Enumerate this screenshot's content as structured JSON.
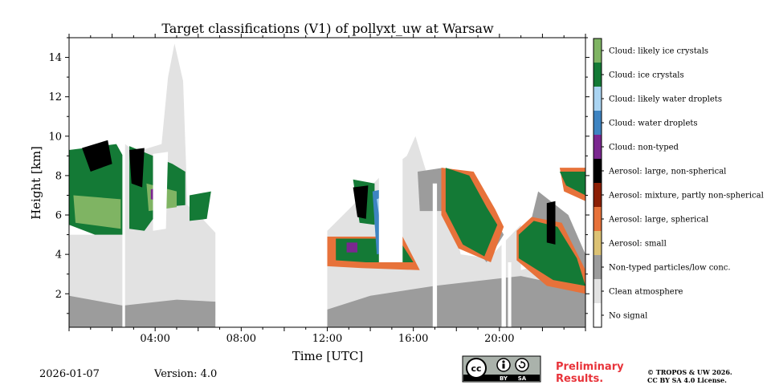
{
  "chart_data": {
    "type": "heatmap",
    "title": "Target classifications (V1) of pollyxt_uw at Warsaw",
    "xlabel": "Time [UTC]",
    "ylabel": "Height [km]",
    "xlim_hours": [
      0,
      24
    ],
    "ylim_km": [
      0.3,
      15
    ],
    "x_ticks": [
      {
        "hour": 4,
        "label": "04:00"
      },
      {
        "hour": 8,
        "label": "08:00"
      },
      {
        "hour": 12,
        "label": "12:00"
      },
      {
        "hour": 16,
        "label": "16:00"
      },
      {
        "hour": 20,
        "label": "20:00"
      }
    ],
    "y_ticks": [
      {
        "km": 2,
        "label": "2"
      },
      {
        "km": 4,
        "label": "4"
      },
      {
        "km": 6,
        "label": "6"
      },
      {
        "km": 8,
        "label": "8"
      },
      {
        "km": 10,
        "label": "10"
      },
      {
        "km": 12,
        "label": "12"
      },
      {
        "km": 14,
        "label": "14"
      }
    ],
    "legend": [
      {
        "label": "Cloud: likely ice crystals",
        "color": "#7fb463"
      },
      {
        "label": "Cloud: ice crystals",
        "color": "#147a36"
      },
      {
        "label": "Cloud: likely water droplets",
        "color": "#aad4f2"
      },
      {
        "label": "Cloud: water droplets",
        "color": "#3e84c2"
      },
      {
        "label": "Cloud: non-typed",
        "color": "#7b2790"
      },
      {
        "label": "Aerosol: large, non-spherical",
        "color": "#000000"
      },
      {
        "label": "Aerosol: mixture, partly non-spherical",
        "color": "#8c1f05"
      },
      {
        "label": "Aerosol: large, spherical",
        "color": "#e7723a"
      },
      {
        "label": "Aerosol: small",
        "color": "#dcc274"
      },
      {
        "label": "Non-typed particles/low conc.",
        "color": "#9c9c9c"
      },
      {
        "label": "Clean atmosphere",
        "color": "#e2e2e2"
      },
      {
        "label": "No signal",
        "color": "#ffffff"
      }
    ],
    "regions": [
      {
        "class": "Clean atmosphere",
        "polygon": [
          [
            0,
            0.9
          ],
          [
            6.8,
            0.9
          ],
          [
            6.8,
            5.1
          ],
          [
            6.2,
            5.8
          ],
          [
            5.5,
            6.5
          ],
          [
            5.3,
            12.8
          ],
          [
            4.9,
            14.7
          ],
          [
            4.6,
            13
          ],
          [
            4.3,
            9.6
          ],
          [
            3.1,
            9.2
          ],
          [
            2.6,
            9.6
          ],
          [
            2.5,
            5
          ],
          [
            0,
            5
          ]
        ]
      },
      {
        "class": "Clean atmosphere",
        "polygon": [
          [
            12,
            0.9
          ],
          [
            24,
            0.9
          ],
          [
            24,
            3
          ],
          [
            22.3,
            3.6
          ],
          [
            21,
            3.2
          ],
          [
            21,
            5.5
          ],
          [
            19.5,
            3.8
          ],
          [
            18.2,
            4
          ],
          [
            17.4,
            8
          ],
          [
            16.6,
            8.2
          ],
          [
            16.1,
            10
          ],
          [
            15.7,
            9
          ],
          [
            14.5,
            8
          ],
          [
            13.2,
            6.5
          ],
          [
            12,
            5.2
          ]
        ]
      },
      {
        "class": "Non-typed particles/low conc.",
        "polygon": [
          [
            0,
            0.3
          ],
          [
            6.8,
            0.3
          ],
          [
            6.8,
            1.6
          ],
          [
            5,
            1.7
          ],
          [
            2.5,
            1.4
          ],
          [
            0,
            1.9
          ]
        ]
      },
      {
        "class": "Non-typed particles/low conc.",
        "polygon": [
          [
            12,
            0.3
          ],
          [
            24,
            0.3
          ],
          [
            24,
            2.2
          ],
          [
            21,
            2.9
          ],
          [
            17,
            2.4
          ],
          [
            14,
            1.9
          ],
          [
            12,
            1.2
          ]
        ]
      },
      {
        "class": "Non-typed particles/low conc.",
        "polygon": [
          [
            16.2,
            8.2
          ],
          [
            17.4,
            8.4
          ],
          [
            17.5,
            6.2
          ],
          [
            16.3,
            6.2
          ]
        ]
      },
      {
        "class": "Non-typed particles/low conc.",
        "polygon": [
          [
            19.2,
            7
          ],
          [
            20.2,
            5
          ],
          [
            19.4,
            3.6
          ],
          [
            18.4,
            5
          ]
        ]
      },
      {
        "class": "Non-typed particles/low conc.",
        "polygon": [
          [
            21.8,
            7.2
          ],
          [
            23.2,
            6
          ],
          [
            24,
            4
          ],
          [
            24,
            3
          ],
          [
            22.5,
            3.8
          ],
          [
            21.2,
            4.5
          ]
        ]
      },
      {
        "class": "Aerosol: large, spherical",
        "polygon": [
          [
            12,
            4.9
          ],
          [
            15.5,
            4.9
          ],
          [
            16.3,
            3.2
          ],
          [
            13.6,
            3.3
          ],
          [
            12,
            3.4
          ]
        ]
      },
      {
        "class": "Aerosol: large, spherical",
        "polygon": [
          [
            17.3,
            8.4
          ],
          [
            18.8,
            8.2
          ],
          [
            19.8,
            6.3
          ],
          [
            20.2,
            5.4
          ],
          [
            19.6,
            3.6
          ],
          [
            18.1,
            4.3
          ],
          [
            17.3,
            6
          ]
        ]
      },
      {
        "class": "Aerosol: large, spherical",
        "polygon": [
          [
            20.8,
            5.2
          ],
          [
            21.5,
            5.9
          ],
          [
            22.9,
            5.6
          ],
          [
            24,
            3.2
          ],
          [
            24,
            2
          ],
          [
            22.2,
            2.4
          ],
          [
            20.8,
            3.7
          ]
        ]
      },
      {
        "class": "Aerosol: large, spherical",
        "polygon": [
          [
            22.8,
            8.4
          ],
          [
            24,
            8.4
          ],
          [
            24,
            6.7
          ],
          [
            23,
            7.2
          ]
        ]
      },
      {
        "class": "Cloud: ice crystals",
        "polygon": [
          [
            0,
            9.3
          ],
          [
            2.2,
            9.6
          ],
          [
            2.5,
            9
          ],
          [
            2.5,
            5
          ],
          [
            1.2,
            5
          ],
          [
            0,
            5.5
          ]
        ]
      },
      {
        "class": "Cloud: ice crystals",
        "polygon": [
          [
            2.8,
            9.5
          ],
          [
            4.8,
            8.6
          ],
          [
            5.4,
            8.2
          ],
          [
            5.4,
            6.5
          ],
          [
            4.3,
            6.4
          ],
          [
            3.5,
            5.2
          ],
          [
            2.8,
            5.3
          ]
        ]
      },
      {
        "class": "Cloud: ice crystals",
        "polygon": [
          [
            5.6,
            7
          ],
          [
            6.6,
            7.2
          ],
          [
            6.4,
            5.8
          ],
          [
            5.6,
            5.7
          ]
        ]
      },
      {
        "class": "Cloud: ice crystals",
        "polygon": [
          [
            12.4,
            4.8
          ],
          [
            15.3,
            4.8
          ],
          [
            16,
            3.6
          ],
          [
            13.8,
            3.6
          ],
          [
            12.4,
            3.7
          ]
        ]
      },
      {
        "class": "Cloud: ice crystals",
        "polygon": [
          [
            13.2,
            7.8
          ],
          [
            14.2,
            7.6
          ],
          [
            14.2,
            5.5
          ],
          [
            13.5,
            5.6
          ]
        ]
      },
      {
        "class": "Cloud: ice crystals",
        "polygon": [
          [
            17.5,
            8.4
          ],
          [
            18.6,
            8
          ],
          [
            19.4,
            6.4
          ],
          [
            19.9,
            5.5
          ],
          [
            19.3,
            3.9
          ],
          [
            18.3,
            4.5
          ],
          [
            17.5,
            6.2
          ]
        ]
      },
      {
        "class": "Cloud: ice crystals",
        "polygon": [
          [
            20.9,
            5
          ],
          [
            21.6,
            5.7
          ],
          [
            22.7,
            5.4
          ],
          [
            23.6,
            3.8
          ],
          [
            24,
            2.4
          ],
          [
            22.5,
            2.7
          ],
          [
            20.9,
            3.8
          ]
        ]
      },
      {
        "class": "Cloud: ice crystals",
        "polygon": [
          [
            22.8,
            8.2
          ],
          [
            24,
            8.2
          ],
          [
            24,
            7
          ],
          [
            23.1,
            7.5
          ]
        ]
      },
      {
        "class": "Cloud: likely ice crystals",
        "polygon": [
          [
            0.2,
            7
          ],
          [
            2.4,
            6.8
          ],
          [
            2.4,
            5.3
          ],
          [
            0.3,
            5.6
          ]
        ]
      },
      {
        "class": "Cloud: likely ice crystals",
        "polygon": [
          [
            3.6,
            7.6
          ],
          [
            5,
            7.2
          ],
          [
            5,
            6.4
          ],
          [
            3.7,
            6.2
          ]
        ]
      },
      {
        "class": "Aerosol: large, non-spherical",
        "polygon": [
          [
            0.6,
            9.4
          ],
          [
            1.8,
            9.8
          ],
          [
            2,
            8.6
          ],
          [
            1,
            8.2
          ]
        ]
      },
      {
        "class": "Aerosol: large, non-spherical",
        "polygon": [
          [
            2.8,
            9.3
          ],
          [
            3.5,
            9.4
          ],
          [
            3.4,
            7.4
          ],
          [
            2.9,
            7.6
          ]
        ]
      },
      {
        "class": "Aerosol: large, non-spherical",
        "polygon": [
          [
            13.2,
            7.4
          ],
          [
            13.9,
            7.5
          ],
          [
            13.8,
            5.8
          ],
          [
            13.4,
            5.9
          ]
        ]
      },
      {
        "class": "Aerosol: large, non-spherical",
        "polygon": [
          [
            22.2,
            6.6
          ],
          [
            22.6,
            6.7
          ],
          [
            22.6,
            4.5
          ],
          [
            22.2,
            4.6
          ]
        ]
      },
      {
        "class": "Cloud: water droplets",
        "polygon": [
          [
            14.1,
            7.2
          ],
          [
            15,
            7.4
          ],
          [
            15.3,
            4.2
          ],
          [
            14.3,
            4
          ]
        ]
      },
      {
        "class": "Cloud: likely water droplets",
        "polygon": [
          [
            14.3,
            6.8
          ],
          [
            15.2,
            7.2
          ],
          [
            15.4,
            4.8
          ],
          [
            14.6,
            4.5
          ]
        ]
      },
      {
        "class": "Cloud: non-typed",
        "polygon": [
          [
            3.8,
            7.3
          ],
          [
            4.3,
            7.4
          ],
          [
            4.3,
            6.7
          ],
          [
            3.8,
            6.8
          ]
        ]
      },
      {
        "class": "Cloud: non-typed",
        "polygon": [
          [
            12.9,
            4.6
          ],
          [
            13.4,
            4.6
          ],
          [
            13.4,
            4.1
          ],
          [
            12.9,
            4.1
          ]
        ]
      },
      {
        "class": "No signal",
        "polygon": [
          [
            2.48,
            0.3
          ],
          [
            2.6,
            0.3
          ],
          [
            2.6,
            15
          ],
          [
            2.48,
            15
          ]
        ]
      },
      {
        "class": "No signal",
        "polygon": [
          [
            3.9,
            5.2
          ],
          [
            4.5,
            5.3
          ],
          [
            4.6,
            9.2
          ],
          [
            3.9,
            9.1
          ]
        ]
      },
      {
        "class": "No signal",
        "polygon": [
          [
            14.4,
            3.6
          ],
          [
            15.5,
            3.6
          ],
          [
            15.5,
            10.5
          ],
          [
            14.4,
            10.5
          ]
        ]
      },
      {
        "class": "No signal",
        "polygon": [
          [
            16.9,
            0.3
          ],
          [
            17.1,
            0.3
          ],
          [
            17.1,
            7.6
          ],
          [
            16.9,
            7.6
          ]
        ]
      },
      {
        "class": "No signal",
        "polygon": [
          [
            20.1,
            0.3
          ],
          [
            20.3,
            0.3
          ],
          [
            20.3,
            4.7
          ],
          [
            20.1,
            4.7
          ]
        ]
      },
      {
        "class": "No signal",
        "polygon": [
          [
            20.4,
            0.3
          ],
          [
            20.55,
            0.3
          ],
          [
            20.55,
            3.6
          ],
          [
            20.4,
            3.6
          ]
        ]
      }
    ]
  },
  "footer": {
    "date": "2026-01-07",
    "version": "Version: 4.0",
    "preliminary_line1": "Preliminary",
    "preliminary_line2": "Results.",
    "copyright_line1": "© TROPOS & UW 2026.",
    "copyright_line2": "CC BY SA 4.0 License.",
    "cc_symbol": "cc",
    "cc_by": "BY",
    "cc_sa": "SA"
  }
}
